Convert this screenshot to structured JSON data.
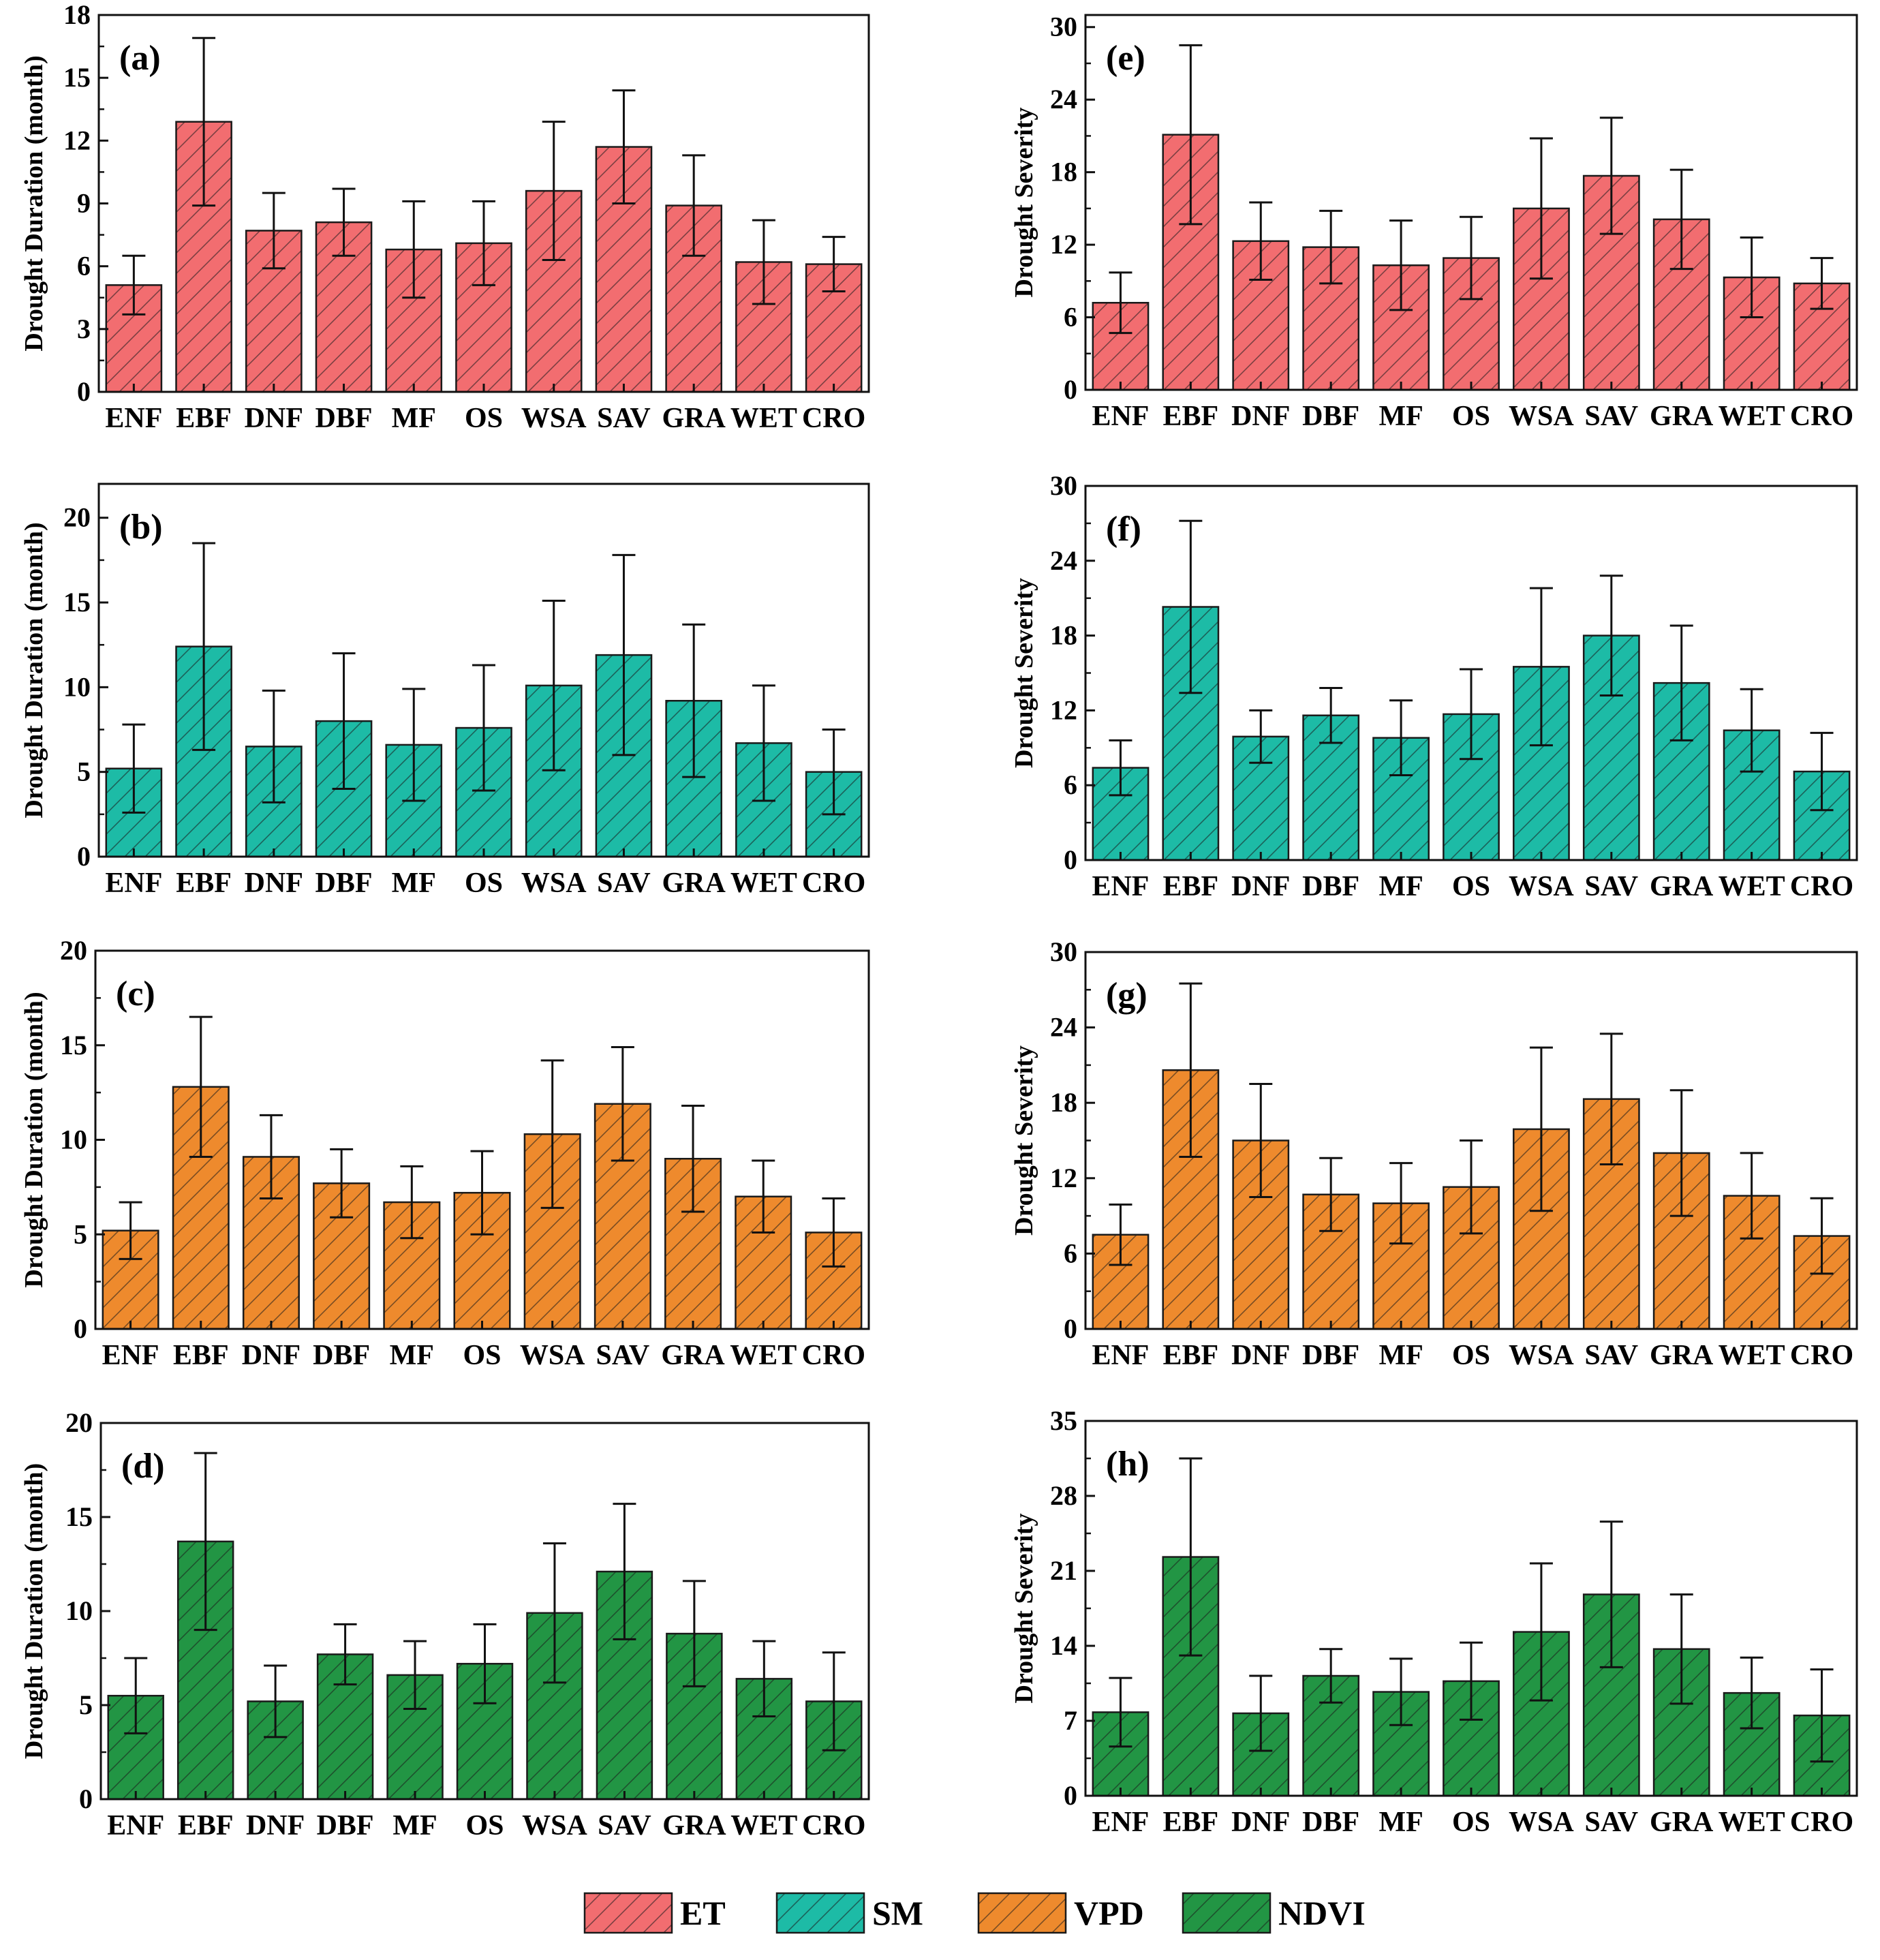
{
  "chart_data": {
    "type": "bar",
    "categories": [
      "ENF",
      "EBF",
      "DNF",
      "DBF",
      "MF",
      "OS",
      "WSA",
      "SAV",
      "GRA",
      "WET",
      "CRO"
    ],
    "legend": [
      {
        "name": "ET",
        "color": "#f26d70"
      },
      {
        "name": "SM",
        "color": "#1dbba6"
      },
      {
        "name": "VPD",
        "color": "#ee8a2d"
      },
      {
        "name": "NDVI",
        "color": "#229544"
      }
    ],
    "panels": [
      {
        "label": "(a)",
        "series": "ET",
        "ylabel": "Drought Duration (month)",
        "ylim": [
          0,
          18
        ],
        "ticks": [
          0,
          3,
          6,
          9,
          12,
          15,
          18
        ],
        "values": [
          5.1,
          12.9,
          7.7,
          8.1,
          6.8,
          7.1,
          9.6,
          11.7,
          8.9,
          6.2,
          6.1
        ],
        "errors": [
          1.4,
          4.0,
          1.8,
          1.6,
          2.3,
          2.0,
          3.3,
          2.7,
          2.4,
          2.0,
          1.3
        ]
      },
      {
        "label": "(b)",
        "series": "SM",
        "ylabel": "Drought Duration (month)",
        "ylim": [
          0,
          22
        ],
        "ticks": [
          0,
          5,
          10,
          15,
          20
        ],
        "values": [
          5.2,
          12.4,
          6.5,
          8.0,
          6.6,
          7.6,
          10.1,
          11.9,
          9.2,
          6.7,
          5.0
        ],
        "errors": [
          2.6,
          6.1,
          3.3,
          4.0,
          3.3,
          3.7,
          5.0,
          5.9,
          4.5,
          3.4,
          2.5
        ]
      },
      {
        "label": "(c)",
        "series": "VPD",
        "ylabel": "Drought Duration (month)",
        "ylim": [
          0,
          20
        ],
        "ticks": [
          0,
          5,
          10,
          15,
          20
        ],
        "values": [
          5.2,
          12.8,
          9.1,
          7.7,
          6.7,
          7.2,
          10.3,
          11.9,
          9.0,
          7.0,
          5.1
        ],
        "errors": [
          1.5,
          3.7,
          2.2,
          1.8,
          1.9,
          2.2,
          3.9,
          3.0,
          2.8,
          1.9,
          1.8
        ]
      },
      {
        "label": "(d)",
        "series": "NDVI",
        "ylabel": "Drought Duration (month)",
        "ylim": [
          0,
          20
        ],
        "ticks": [
          0,
          5,
          10,
          15,
          20
        ],
        "values": [
          5.5,
          13.7,
          5.2,
          7.7,
          6.6,
          7.2,
          9.9,
          12.1,
          8.8,
          6.4,
          5.2
        ],
        "errors": [
          2.0,
          4.7,
          1.9,
          1.6,
          1.8,
          2.1,
          3.7,
          3.6,
          2.8,
          2.0,
          2.6
        ]
      },
      {
        "label": "(e)",
        "series": "ET",
        "ylabel": "Drought Severity",
        "ylim": [
          0,
          31
        ],
        "ticks": [
          0,
          6,
          12,
          18,
          24,
          30
        ],
        "values": [
          7.2,
          21.1,
          12.3,
          11.8,
          10.3,
          10.9,
          15.0,
          17.7,
          14.1,
          9.3,
          8.8
        ],
        "errors": [
          2.5,
          7.4,
          3.2,
          3.0,
          3.7,
          3.4,
          5.8,
          4.8,
          4.1,
          3.3,
          2.1
        ]
      },
      {
        "label": "(f)",
        "series": "SM",
        "ylabel": "Drought Severity",
        "ylim": [
          0,
          30
        ],
        "ticks": [
          0,
          6,
          12,
          18,
          24,
          30
        ],
        "values": [
          7.4,
          20.3,
          9.9,
          11.6,
          9.8,
          11.7,
          15.5,
          18.0,
          14.2,
          10.4,
          7.1
        ],
        "errors": [
          2.2,
          6.9,
          2.1,
          2.2,
          3.0,
          3.6,
          6.3,
          4.8,
          4.6,
          3.3,
          3.1
        ]
      },
      {
        "label": "(g)",
        "series": "VPD",
        "ylabel": "Drought Severity",
        "ylim": [
          0,
          30
        ],
        "ticks": [
          0,
          6,
          12,
          18,
          24,
          30
        ],
        "values": [
          7.5,
          20.6,
          15.0,
          10.7,
          10.0,
          11.3,
          15.9,
          18.3,
          14.0,
          10.6,
          7.4
        ],
        "errors": [
          2.4,
          6.9,
          4.5,
          2.9,
          3.2,
          3.7,
          6.5,
          5.2,
          5.0,
          3.4,
          3.0
        ]
      },
      {
        "label": "(h)",
        "series": "NDVI",
        "ylabel": "Drought Severity",
        "ylim": [
          0,
          35
        ],
        "ticks": [
          0,
          7,
          14,
          21,
          28,
          35
        ],
        "values": [
          7.8,
          22.3,
          7.7,
          11.2,
          9.7,
          10.7,
          15.3,
          18.8,
          13.7,
          9.6,
          7.5
        ],
        "errors": [
          3.2,
          9.2,
          3.5,
          2.5,
          3.1,
          3.6,
          6.4,
          6.8,
          5.1,
          3.3,
          4.3
        ]
      }
    ]
  }
}
